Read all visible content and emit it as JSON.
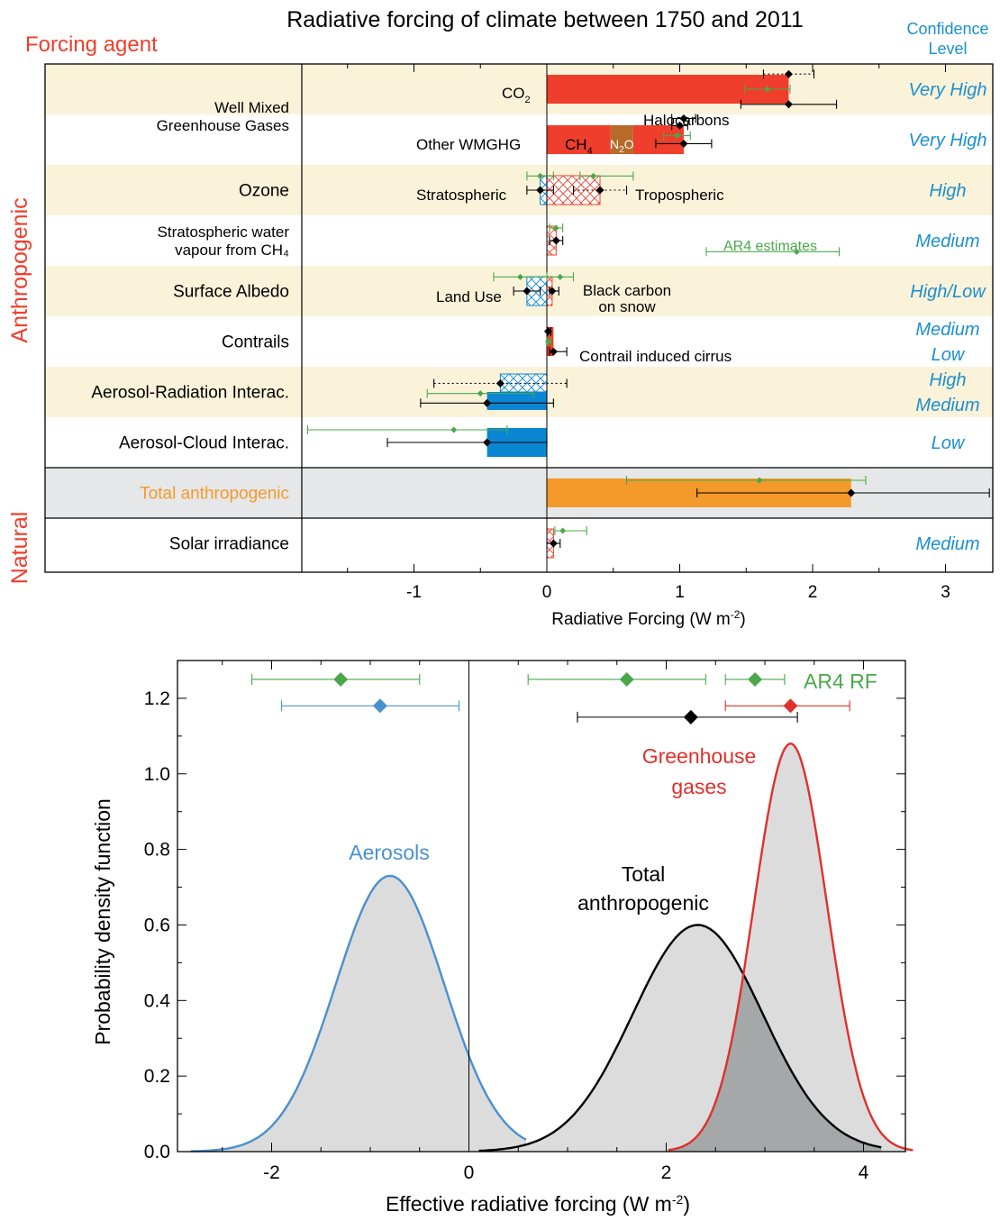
{
  "colors": {
    "red": "#ef3e2b",
    "brown": "#b86a2a",
    "blue": "#0b86d2",
    "orange": "#f39a2b",
    "green": "#4aa84a",
    "black": "#000000",
    "beige": "#fbf2da",
    "gray_band": "#e6e7e8",
    "agent_red": "#ef3e2b",
    "conf_blue": "#1a8fd0",
    "pdf_blue": "#4a90cf",
    "pdf_red": "#e0302b",
    "pdf_fill": "#dcdcdc",
    "pdf_overlap": "#a4a8a8"
  },
  "chart_data": [
    {
      "type": "bar",
      "title": "Radiative forcing of climate between 1750 and 2011",
      "header_left": "Forcing agent",
      "header_right": [
        "Confidence",
        "Level"
      ],
      "group_labels": [
        "Anthropogenic",
        "Natural"
      ],
      "xlabel": "Radiative Forcing (W m",
      "xlabel_sup": "-2",
      "xlabel_end": ")",
      "xlim": [
        -1.85,
        3.35
      ],
      "xticks": [
        "-1",
        "0",
        "1",
        "2",
        "3"
      ],
      "xtick_values": [
        -1,
        0,
        1,
        2,
        3
      ],
      "rows": [
        {
          "label": [
            "Well Mixed",
            "Greenhouse Gases"
          ],
          "confidence": [
            "Very High"
          ],
          "band": "beige"
        },
        {
          "label": [
            ""
          ],
          "confidence": [
            "Very High"
          ],
          "band": "white"
        },
        {
          "label": [
            "Ozone"
          ],
          "confidence": [
            "High"
          ],
          "band": "beige"
        },
        {
          "label": [
            "Stratospheric water",
            "vapour from CH₄"
          ],
          "confidence": [
            "Medium"
          ],
          "band": "white"
        },
        {
          "label": [
            "Surface Albedo"
          ],
          "confidence": [
            "High/Low"
          ],
          "band": "beige"
        },
        {
          "label": [
            "Contrails"
          ],
          "confidence": [
            "Medium",
            "Low"
          ],
          "band": "white"
        },
        {
          "label": [
            "Aerosol-Radiation Interac."
          ],
          "confidence": [
            "High",
            "Medium"
          ],
          "band": "beige"
        },
        {
          "label": [
            "Aerosol-Cloud Interac."
          ],
          "confidence": [
            "Low"
          ],
          "band": "white"
        },
        {
          "label": [
            "Total anthropogenic"
          ],
          "confidence": [
            ""
          ],
          "band": "gray"
        },
        {
          "label": [
            "Solar irradiance"
          ],
          "confidence": [
            "Medium"
          ],
          "band": "white"
        }
      ],
      "bars": [
        {
          "name": "CO₂",
          "row": 0,
          "x0": 0,
          "x1": 1.82,
          "fill": "red"
        },
        {
          "name": "CH₄",
          "row": 1,
          "x0": 0,
          "x1": 0.48,
          "fill": "red"
        },
        {
          "name": "N₂O",
          "row": 1,
          "x0": 0.48,
          "x1": 0.65,
          "fill": "brown"
        },
        {
          "name": "Halocarbons",
          "row": 1,
          "x0": 0.65,
          "x1": 1.03,
          "fill": "red"
        },
        {
          "name": "Stratospheric ozone",
          "row": 2,
          "x0": -0.05,
          "x1": 0,
          "fill": "hatch-blue"
        },
        {
          "name": "Tropospheric ozone",
          "row": 2,
          "x0": 0,
          "x1": 0.4,
          "fill": "hatch-red"
        },
        {
          "name": "Stratospheric water vapour",
          "row": 3,
          "x0": 0,
          "x1": 0.07,
          "fill": "hatch-red"
        },
        {
          "name": "Land Use",
          "row": 4,
          "x0": -0.15,
          "x1": 0,
          "fill": "hatch-blue"
        },
        {
          "name": "Black carbon on snow",
          "row": 4,
          "x0": 0,
          "x1": 0.04,
          "fill": "hatch-red"
        },
        {
          "name": "Contrail induced cirrus",
          "row": 5,
          "x0": 0,
          "x1": 0.05,
          "fill": "red"
        },
        {
          "name": "Aerosol-Radiation RF",
          "row": 6,
          "x0": -0.35,
          "x1": 0,
          "fill": "hatch-blue"
        },
        {
          "name": "Aerosol-Radiation ERF",
          "row": 6,
          "x0": -0.45,
          "x1": 0,
          "fill": "blue"
        },
        {
          "name": "Aerosol-Cloud Interac.",
          "row": 7,
          "x0": -0.45,
          "x1": 0,
          "fill": "blue"
        },
        {
          "name": "Total anthropogenic",
          "row": 8,
          "x0": 0,
          "x1": 2.29,
          "fill": "orange"
        },
        {
          "name": "Solar irradiance",
          "row": 9,
          "x0": 0,
          "x1": 0.05,
          "fill": "hatch-red"
        }
      ],
      "error_bars": [
        {
          "row": 0,
          "pos": 0.2,
          "x": 1.82,
          "lo": 1.63,
          "hi": 2.01,
          "color": "black",
          "dotted": true
        },
        {
          "row": 0,
          "pos": 0.5,
          "x": 1.66,
          "lo": 1.49,
          "hi": 1.83,
          "color": "green",
          "dotted": false
        },
        {
          "row": 0,
          "pos": 0.8,
          "x": 1.82,
          "lo": 1.46,
          "hi": 2.18,
          "color": "black",
          "dotted": false
        },
        {
          "row": 1,
          "pos": 0.08,
          "x": 1.03,
          "lo": 0.94,
          "hi": 1.12,
          "color": "black",
          "dotted": false
        },
        {
          "row": 1,
          "pos": 0.22,
          "x": 1.0,
          "lo": 0.94,
          "hi": 1.06,
          "color": "black",
          "dotted": false
        },
        {
          "row": 1,
          "pos": 0.42,
          "x": 0.98,
          "lo": 0.88,
          "hi": 1.08,
          "color": "green",
          "dotted": false
        },
        {
          "row": 1,
          "pos": 0.58,
          "x": 1.03,
          "lo": 0.82,
          "hi": 1.24,
          "color": "black",
          "dotted": false
        },
        {
          "row": 2,
          "pos": 0.22,
          "x": -0.05,
          "lo": -0.15,
          "hi": 0.05,
          "color": "green",
          "dotted": false
        },
        {
          "row": 2,
          "pos": 0.22,
          "x": 0.35,
          "lo": 0.25,
          "hi": 0.65,
          "color": "green",
          "dotted": false
        },
        {
          "row": 2,
          "pos": 0.5,
          "x": -0.05,
          "lo": -0.15,
          "hi": 0.05,
          "color": "black",
          "dotted": false
        },
        {
          "row": 2,
          "pos": 0.5,
          "x": 0.4,
          "lo": 0.2,
          "hi": 0.6,
          "color": "black",
          "dotted": true
        },
        {
          "row": 3,
          "pos": 0.25,
          "x": 0.07,
          "lo": 0.02,
          "hi": 0.12,
          "color": "green",
          "dotted": false
        },
        {
          "row": 3,
          "pos": 0.5,
          "x": 0.07,
          "lo": 0.02,
          "hi": 0.12,
          "color": "black",
          "dotted": false
        },
        {
          "row": 4,
          "pos": 0.22,
          "x": -0.2,
          "lo": -0.4,
          "hi": 0.0,
          "color": "green",
          "dotted": false
        },
        {
          "row": 4,
          "pos": 0.22,
          "x": 0.1,
          "lo": 0.0,
          "hi": 0.2,
          "color": "green",
          "dotted": false
        },
        {
          "row": 4,
          "pos": 0.5,
          "x": -0.15,
          "lo": -0.25,
          "hi": -0.05,
          "color": "black",
          "dotted": false
        },
        {
          "row": 4,
          "pos": 0.5,
          "x": 0.04,
          "lo": 0.02,
          "hi": 0.09,
          "color": "black",
          "dotted": false
        },
        {
          "row": 5,
          "pos": 0.3,
          "x": 0.01,
          "lo": 0.005,
          "hi": 0.03,
          "color": "black",
          "dotted": false
        },
        {
          "row": 5,
          "pos": 0.5,
          "x": 0.01,
          "lo": 0.003,
          "hi": 0.03,
          "color": "green",
          "dotted": false
        },
        {
          "row": 5,
          "pos": 0.7,
          "x": 0.05,
          "lo": 0.02,
          "hi": 0.15,
          "color": "black",
          "dotted": false
        },
        {
          "row": 6,
          "pos": 0.33,
          "x": -0.35,
          "lo": -0.85,
          "hi": 0.15,
          "color": "black",
          "dotted": true
        },
        {
          "row": 6,
          "pos": 0.53,
          "x": -0.5,
          "lo": -0.9,
          "hi": -0.1,
          "color": "green",
          "dotted": false
        },
        {
          "row": 6,
          "pos": 0.72,
          "x": -0.45,
          "lo": -0.95,
          "hi": 0.05,
          "color": "black",
          "dotted": false
        },
        {
          "row": 7,
          "pos": 0.25,
          "x": -0.7,
          "lo": -1.8,
          "hi": -0.3,
          "color": "green",
          "dotted": false
        },
        {
          "row": 7,
          "pos": 0.5,
          "x": -0.45,
          "lo": -1.2,
          "hi": 0.0,
          "color": "black",
          "dotted": false
        },
        {
          "row": 8,
          "pos": 0.25,
          "x": 1.6,
          "lo": 0.6,
          "hi": 2.4,
          "color": "green",
          "dotted": false
        },
        {
          "row": 8,
          "pos": 0.5,
          "x": 2.29,
          "lo": 1.13,
          "hi": 3.33,
          "color": "black",
          "dotted": false
        },
        {
          "row": 9,
          "pos": 0.25,
          "x": 0.12,
          "lo": 0.06,
          "hi": 0.3,
          "color": "green",
          "dotted": false
        },
        {
          "row": 9,
          "pos": 0.5,
          "x": 0.05,
          "lo": 0.0,
          "hi": 0.1,
          "color": "black",
          "dotted": false
        }
      ],
      "annotations": {
        "co2": "CO",
        "co2_sub": "2",
        "other_wmghg": "Other WMGHG",
        "ch4": "CH",
        "ch4_sub": "4",
        "n2o": "N",
        "n2o_sub": "2",
        "n2o_end": "O",
        "halocarbons": "Halocarbons",
        "stratospheric": "Stratospheric",
        "tropospheric": "Tropospheric",
        "ar4_estimates": "AR4 estimates",
        "land_use": "Land Use",
        "black_carbon": [
          "Black carbon",
          "on snow"
        ],
        "contrail_cirrus": "Contrail induced cirrus"
      },
      "legend_error_bar": {
        "x": 1.88,
        "lo": 1.2,
        "hi": 2.2,
        "color": "green"
      }
    },
    {
      "type": "line",
      "xlabel": "Effective radiative forcing (W m",
      "xlabel_sup": "-2",
      "xlabel_end": ")",
      "ylabel": "Probability density function",
      "xlim": [
        -3.0,
        4.6
      ],
      "ylim": [
        0.0,
        1.3
      ],
      "xticks": [
        "-2",
        "0",
        "2",
        "4"
      ],
      "xtick_values": [
        -2,
        0,
        2,
        4
      ],
      "yticks": [
        "0.0",
        "0.2",
        "0.4",
        "0.6",
        "0.8",
        "1.0",
        "1.2"
      ],
      "ytick_values": [
        0.0,
        0.2,
        0.4,
        0.6,
        0.8,
        1.0,
        1.2
      ],
      "series": [
        {
          "name": "Aerosols",
          "mean": -0.8,
          "sd": 0.55,
          "peak": 0.73,
          "xmin": -2.82,
          "xmax": 0.58,
          "color": "pdf_blue"
        },
        {
          "name": "Total anthropogenic",
          "mean": 2.32,
          "sd": 0.66,
          "peak": 0.6,
          "xmin": 0.1,
          "xmax": 4.18,
          "color": "black"
        },
        {
          "name": "Greenhouse gases",
          "mean": 3.26,
          "sd": 0.37,
          "peak": 1.08,
          "xmin": 2.02,
          "xmax": 4.5,
          "color": "pdf_red"
        }
      ],
      "series_labels": {
        "aerosols": "Aerosols",
        "total": [
          "Total",
          "anthropogenic"
        ],
        "ghg": [
          "Greenhouse",
          "gases"
        ],
        "ar4": "AR4 RF"
      },
      "markers": [
        {
          "y": 1.25,
          "x": -1.3,
          "lo": -2.2,
          "hi": -0.5,
          "color": "green"
        },
        {
          "y": 1.18,
          "x": -0.9,
          "lo": -1.9,
          "hi": -0.1,
          "color": "pdf_blue"
        },
        {
          "y": 1.25,
          "x": 1.6,
          "lo": 0.6,
          "hi": 2.4,
          "color": "green"
        },
        {
          "y": 1.25,
          "x": 2.9,
          "lo": 2.6,
          "hi": 3.2,
          "color": "green"
        },
        {
          "y": 1.18,
          "x": 3.26,
          "lo": 2.6,
          "hi": 3.86,
          "color": "pdf_red"
        },
        {
          "y": 1.15,
          "x": 2.25,
          "lo": 1.1,
          "hi": 3.33,
          "color": "black"
        }
      ]
    }
  ]
}
